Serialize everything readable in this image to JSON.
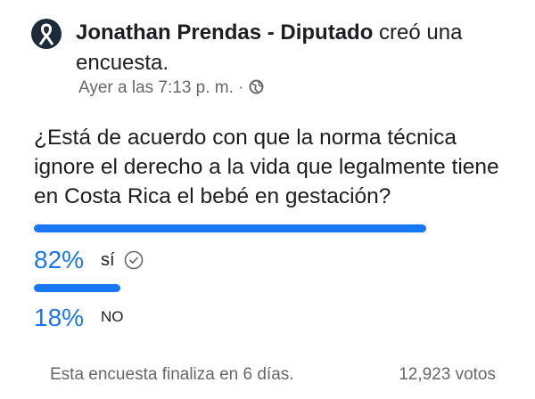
{
  "header": {
    "author": "Jonathan Prendas - Diputado",
    "action": "creó una encuesta.",
    "time": "Ayer a las 7:13 p. m. ·"
  },
  "poll": {
    "question": "¿Está de acuerdo con que la norma técnica ignore el derecho a la vida que legalmente tiene en Costa Rica el bebé en gestación?",
    "options": [
      {
        "value": 82,
        "value_label": "82%",
        "label": "sí"
      },
      {
        "value": 18,
        "value_label": "18%",
        "label": "NO"
      }
    ],
    "footer": "Esta encuesta finaliza en 6 días.",
    "votes": "12,923 votos"
  }
}
